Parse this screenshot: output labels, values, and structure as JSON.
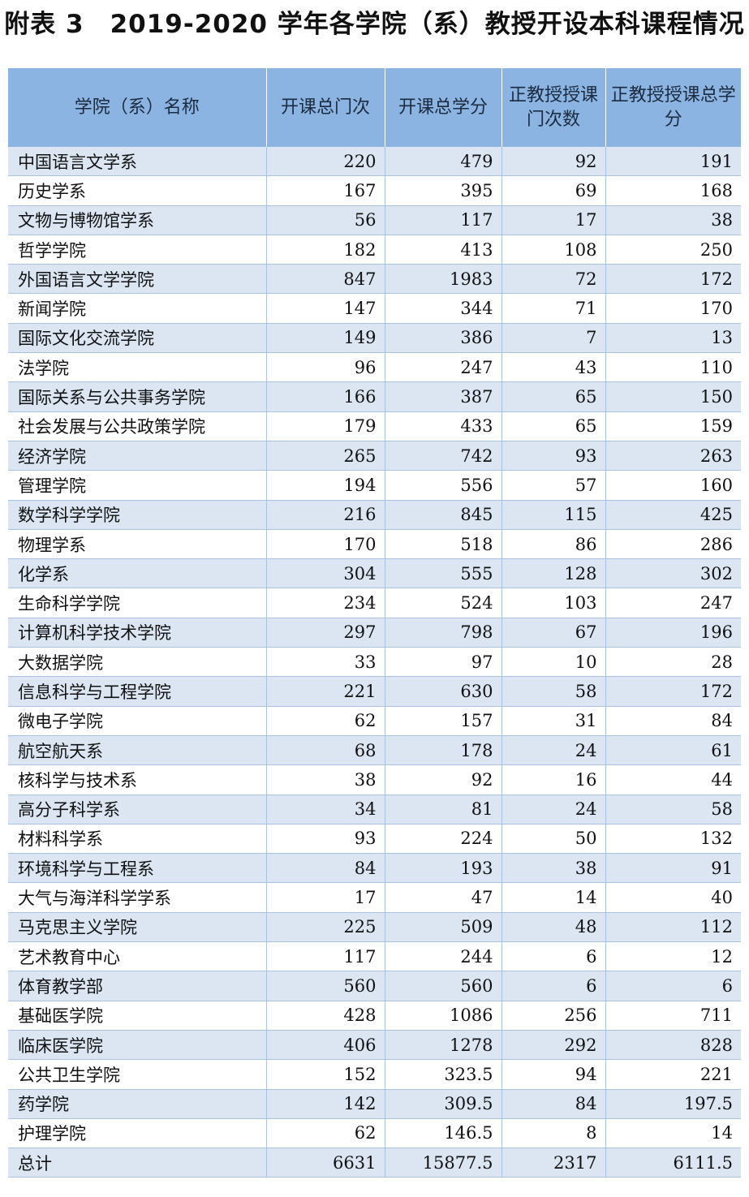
{
  "title": "附表 3　2019-2020 学年各学院（系）教授开设本科课程情况",
  "headers": [
    "学院（系）名称",
    "开课总门次",
    "开课总学分",
    "正教授授课门次数",
    "正教授授课总学分"
  ],
  "rows": [
    [
      "中国语言文学系",
      "220",
      "479",
      "92",
      "191"
    ],
    [
      "历史学系",
      "167",
      "395",
      "69",
      "168"
    ],
    [
      "文物与博物馆学系",
      "56",
      "117",
      "17",
      "38"
    ],
    [
      "哲学学院",
      "182",
      "413",
      "108",
      "250"
    ],
    [
      "外国语言文学学院",
      "847",
      "1983",
      "72",
      "172"
    ],
    [
      "新闻学院",
      "147",
      "344",
      "71",
      "170"
    ],
    [
      "国际文化交流学院",
      "149",
      "386",
      "7",
      "13"
    ],
    [
      "法学院",
      "96",
      "247",
      "43",
      "110"
    ],
    [
      "国际关系与公共事务学院",
      "166",
      "387",
      "65",
      "150"
    ],
    [
      "社会发展与公共政策学院",
      "179",
      "433",
      "65",
      "159"
    ],
    [
      "经济学院",
      "265",
      "742",
      "93",
      "263"
    ],
    [
      "管理学院",
      "194",
      "556",
      "57",
      "160"
    ],
    [
      "数学科学学院",
      "216",
      "845",
      "115",
      "425"
    ],
    [
      "物理学系",
      "170",
      "518",
      "86",
      "286"
    ],
    [
      "化学系",
      "304",
      "555",
      "128",
      "302"
    ],
    [
      "生命科学学院",
      "234",
      "524",
      "103",
      "247"
    ],
    [
      "计算机科学技术学院",
      "297",
      "798",
      "67",
      "196"
    ],
    [
      "大数据学院",
      "33",
      "97",
      "10",
      "28"
    ],
    [
      "信息科学与工程学院",
      "221",
      "630",
      "58",
      "172"
    ],
    [
      "微电子学院",
      "62",
      "157",
      "31",
      "84"
    ],
    [
      "航空航天系",
      "68",
      "178",
      "24",
      "61"
    ],
    [
      "核科学与技术系",
      "38",
      "92",
      "16",
      "44"
    ],
    [
      "高分子科学系",
      "34",
      "81",
      "24",
      "58"
    ],
    [
      "材料科学系",
      "93",
      "224",
      "50",
      "132"
    ],
    [
      "环境科学与工程系",
      "84",
      "193",
      "38",
      "91"
    ],
    [
      "大气与海洋科学学系",
      "17",
      "47",
      "14",
      "40"
    ],
    [
      "马克思主义学院",
      "225",
      "509",
      "48",
      "112"
    ],
    [
      "艺术教育中心",
      "117",
      "244",
      "6",
      "12"
    ],
    [
      "体育教学部",
      "560",
      "560",
      "6",
      "6"
    ],
    [
      "基础医学院",
      "428",
      "1086",
      "256",
      "711"
    ],
    [
      "临床医学院",
      "406",
      "1278",
      "292",
      "828"
    ],
    [
      "公共卫生学院",
      "152",
      "323.5",
      "94",
      "221"
    ],
    [
      "药学院",
      "142",
      "309.5",
      "84",
      "197.5"
    ],
    [
      "护理学院",
      "62",
      "146.5",
      "8",
      "14"
    ],
    [
      "总计",
      "6631",
      "15877.5",
      "2317",
      "6111.5"
    ]
  ],
  "colors": {
    "header_bg": "#8cb4e2",
    "stripe_bg": "#dce6f2",
    "grid_line": "#a9c2e4"
  }
}
